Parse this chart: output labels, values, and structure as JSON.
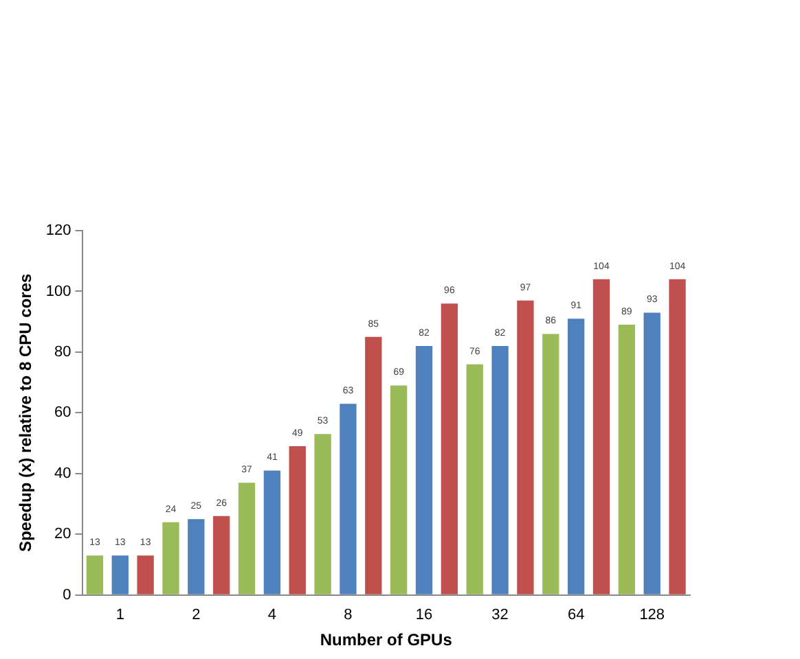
{
  "chart_data": {
    "type": "bar",
    "xlabel": "Number of GPUs",
    "ylabel": "Speedup (x) relative to 8 CPU cores",
    "categories": [
      "1",
      "2",
      "4",
      "8",
      "16",
      "32",
      "64",
      "128"
    ],
    "series": [
      {
        "color": "#9bbb59",
        "values": [
          13,
          24,
          37,
          53,
          69,
          76,
          86,
          89
        ]
      },
      {
        "color": "#4f81bd",
        "values": [
          13,
          25,
          41,
          63,
          82,
          82,
          91,
          93
        ]
      },
      {
        "color": "#c0504d",
        "values": [
          13,
          26,
          49,
          85,
          96,
          97,
          104,
          104
        ]
      }
    ],
    "ylim": [
      0,
      120
    ],
    "yticks": [
      0,
      20,
      40,
      60,
      80,
      100,
      120
    ],
    "grid": false,
    "legend": false,
    "data_labels": true
  }
}
